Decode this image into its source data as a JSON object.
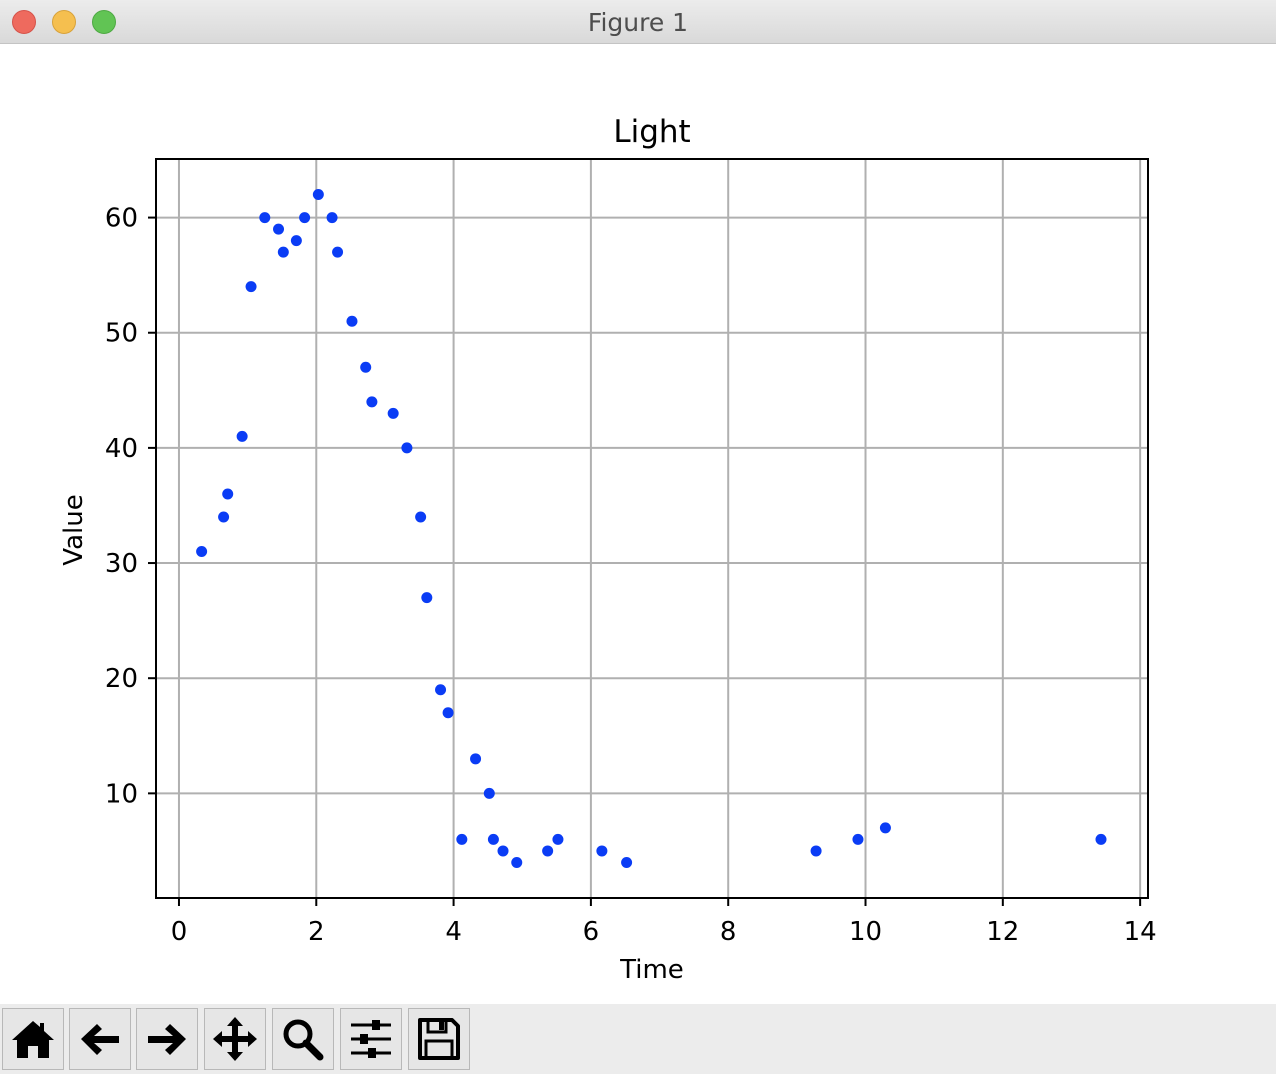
{
  "window": {
    "title": "Figure 1"
  },
  "toolbar": {
    "buttons": [
      {
        "icon": "home-icon",
        "name": "home-button"
      },
      {
        "icon": "back-arrow-icon",
        "name": "back-button"
      },
      {
        "icon": "forward-arrow-icon",
        "name": "forward-button"
      },
      {
        "icon": "pan-move-icon",
        "name": "pan-button"
      },
      {
        "icon": "zoom-magnifier-icon",
        "name": "zoom-button"
      },
      {
        "icon": "sliders-icon",
        "name": "configure-subplots-button"
      },
      {
        "icon": "save-floppy-icon",
        "name": "save-button"
      }
    ]
  },
  "chart_data": {
    "type": "scatter",
    "title": "Light",
    "xlabel": "Time",
    "ylabel": "Value",
    "xlim": [
      -0.32,
      14.1
    ],
    "ylim": [
      1,
      65
    ],
    "xticks": [
      0,
      2,
      4,
      6,
      8,
      10,
      12,
      14
    ],
    "yticks": [
      10,
      20,
      30,
      40,
      50,
      60
    ],
    "grid": true,
    "marker_color": "#0a3cf5",
    "series": [
      {
        "x": [
          0.33,
          0.65,
          0.71,
          0.92,
          1.05,
          1.25,
          1.45,
          1.52,
          1.71,
          1.83,
          2.03,
          2.23,
          2.31,
          2.52,
          2.72,
          2.81,
          3.12,
          3.32,
          3.52,
          3.61,
          3.81,
          3.92,
          4.12,
          4.32,
          4.52,
          4.58,
          4.72,
          4.92,
          5.37,
          5.52,
          6.16,
          6.52,
          9.28,
          9.89,
          10.29,
          13.43
        ],
        "y": [
          31,
          34,
          36,
          41,
          54,
          60,
          59,
          57,
          58,
          60,
          62,
          60,
          57,
          51,
          47,
          44,
          43,
          40,
          34,
          27,
          19,
          17,
          6,
          13,
          10,
          6,
          5,
          4,
          5,
          6,
          5,
          4,
          5,
          6,
          7,
          6
        ]
      }
    ]
  }
}
